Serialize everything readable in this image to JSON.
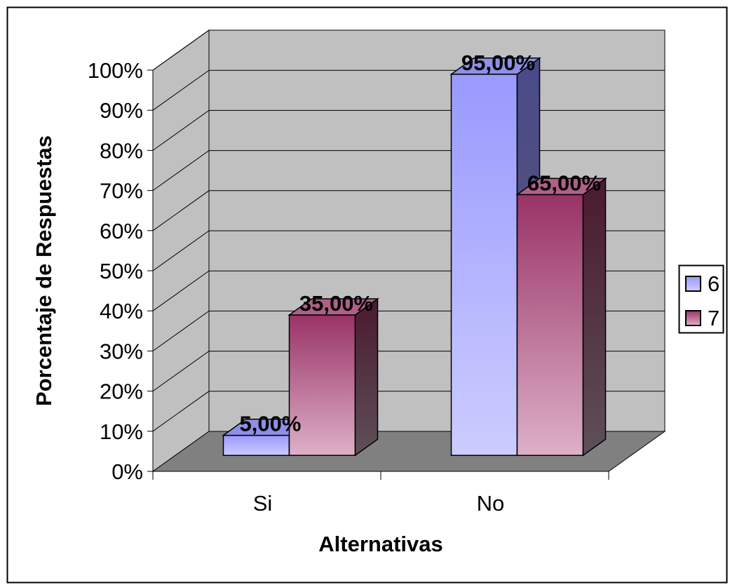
{
  "chart_data": {
    "type": "bar",
    "categories": [
      "Si",
      "No"
    ],
    "series": [
      {
        "name": "6",
        "values": [
          5,
          95
        ],
        "labels": [
          "5,00%",
          "95,00%"
        ],
        "color": "#a0a0f8"
      },
      {
        "name": "7",
        "values": [
          35,
          65
        ],
        "labels": [
          "35,00%",
          "65,00%"
        ],
        "color": "#9a3366"
      }
    ],
    "xlabel": "Alternativas",
    "ylabel": "Porcentaje de Respuestas",
    "ylim": [
      0,
      100
    ],
    "yticks": [
      "0%",
      "10%",
      "20%",
      "30%",
      "40%",
      "50%",
      "60%",
      "70%",
      "80%",
      "90%",
      "100%"
    ],
    "grid": true,
    "legend_position": "right",
    "three_d": true,
    "colors": {
      "back_wall": "#c0c0c0",
      "side_wall": "#c0c0c0",
      "floor": "#808080"
    }
  }
}
